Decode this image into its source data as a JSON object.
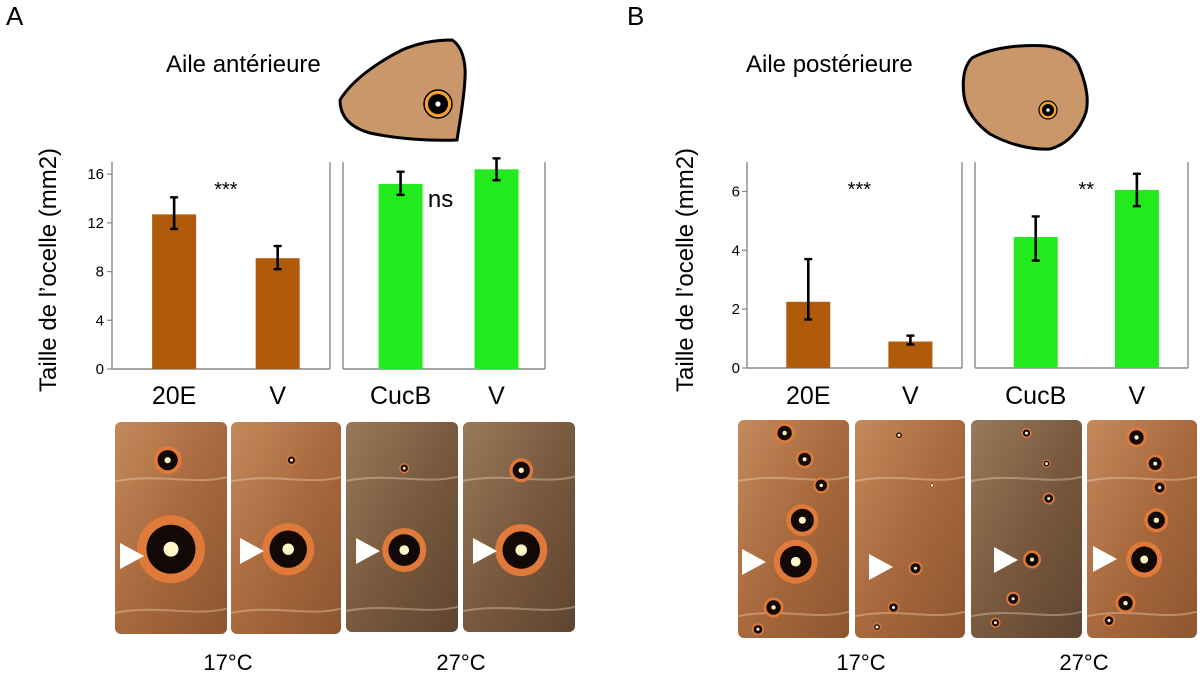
{
  "panels": [
    {
      "letter": "A",
      "wing_title": "Aile antérieure",
      "y_axis_label": "Taille de l’ocelle (mm2)",
      "temperature_labels": [
        "17°C",
        "27°C"
      ]
    },
    {
      "letter": "B",
      "wing_title": "Aile postérieure",
      "y_axis_label": "Taille de l’ocelle (mm2)",
      "temperature_labels": [
        "17°C",
        "27°C"
      ]
    }
  ],
  "colors": {
    "brown_bar": "#b05a0c",
    "green_bar": "#22ea1c",
    "wing_fill": "#c9976a",
    "eyespot_ring": "#f3a12a",
    "photo_background": "#b07345"
  },
  "chart_data": [
    {
      "type": "bar",
      "panel": "A",
      "ylabel": "Taille de l’ocelle (mm2)",
      "ylim": [
        0,
        17
      ],
      "yticks": [
        0,
        4,
        8,
        12,
        16
      ],
      "groups": [
        {
          "categories": [
            "20E",
            "V"
          ],
          "values": [
            12.7,
            9.1
          ],
          "error_low": [
            11.5,
            8.2
          ],
          "error_high": [
            14.1,
            10.1
          ],
          "color": "#b05a0c",
          "significance": "***"
        },
        {
          "categories": [
            "CucB",
            "V"
          ],
          "values": [
            15.2,
            16.4
          ],
          "error_low": [
            14.3,
            15.5
          ],
          "error_high": [
            16.2,
            17.3
          ],
          "color": "#22ea1c",
          "significance": "ns"
        }
      ]
    },
    {
      "type": "bar",
      "panel": "B",
      "ylabel": "Taille de l’ocelle (mm2)",
      "ylim": [
        0,
        7
      ],
      "yticks": [
        0,
        2,
        4,
        6
      ],
      "groups": [
        {
          "categories": [
            "20E",
            "V"
          ],
          "values": [
            2.25,
            0.9
          ],
          "error_low": [
            1.65,
            0.8
          ],
          "error_high": [
            3.7,
            1.1
          ],
          "color": "#b05a0c",
          "significance": "***"
        },
        {
          "categories": [
            "CucB",
            "V"
          ],
          "values": [
            4.45,
            6.05
          ],
          "error_low": [
            3.65,
            5.5
          ],
          "error_high": [
            5.15,
            6.6
          ],
          "color": "#22ea1c",
          "significance": "**"
        }
      ]
    }
  ]
}
